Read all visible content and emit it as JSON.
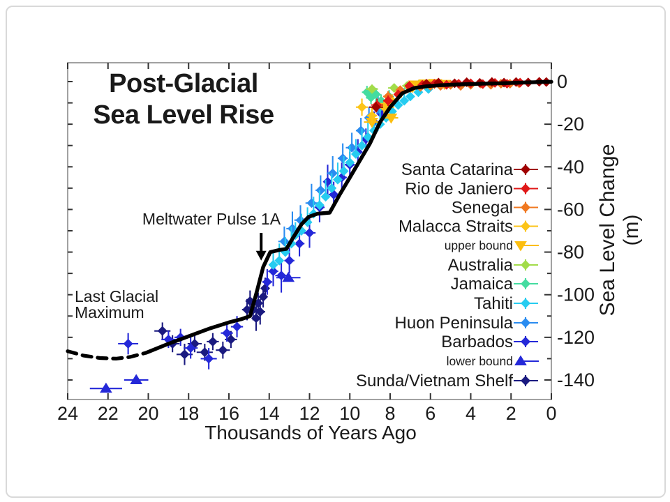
{
  "chart_data": {
    "type": "scatter",
    "title": "Post-Glacial Sea Level Rise",
    "title_line1": "Post-Glacial",
    "title_line2": "Sea Level Rise",
    "xlabel": "Thousands of Years Ago",
    "ylabel": "Sea Level Change (m)",
    "axes": {
      "xlim": [
        24,
        0
      ],
      "x_ticks": [
        24,
        22,
        20,
        18,
        16,
        14,
        12,
        10,
        8,
        6,
        4,
        2,
        0
      ],
      "ylim": [
        -150,
        9
      ],
      "y_ticks_labeled": [
        0,
        -20,
        -40,
        -60,
        -80,
        -100,
        -120,
        -140
      ],
      "y_minor_step": 10,
      "grid": false,
      "tick_label_color": "#1a1a1a"
    },
    "annotations": {
      "meltwater": {
        "text": "Meltwater Pulse 1A",
        "arrow_x_kyr": 14.4,
        "arrow_tail_m": -71,
        "arrow_tip_m": -84
      },
      "lgm": {
        "line1": "Last Glacial",
        "line2": "Maximum"
      }
    },
    "curve": {
      "color": "#000000",
      "dashed_points": [
        [
          24,
          -126.5
        ],
        [
          23.2,
          -128.6
        ],
        [
          22.4,
          -129.7
        ],
        [
          21.6,
          -130
        ],
        [
          20.9,
          -129.2
        ],
        [
          20.1,
          -127.2
        ]
      ],
      "solid_points": [
        [
          20.1,
          -127.2
        ],
        [
          19,
          -123
        ],
        [
          18,
          -119.5
        ],
        [
          17,
          -116
        ],
        [
          16,
          -113
        ],
        [
          15.4,
          -111.5
        ],
        [
          14.95,
          -110
        ],
        [
          14.6,
          -98
        ],
        [
          14.3,
          -87
        ],
        [
          13.95,
          -80
        ],
        [
          13.5,
          -79
        ],
        [
          13.15,
          -78.5
        ],
        [
          12.8,
          -73
        ],
        [
          12.4,
          -67
        ],
        [
          12.05,
          -63.5
        ],
        [
          11.6,
          -62
        ],
        [
          11,
          -61.5
        ],
        [
          10.5,
          -53
        ],
        [
          10,
          -45
        ],
        [
          9.5,
          -37
        ],
        [
          9,
          -29
        ],
        [
          8.5,
          -19
        ],
        [
          8,
          -12
        ],
        [
          7.4,
          -5.5
        ],
        [
          6.8,
          -3
        ],
        [
          6.2,
          -2.2
        ],
        [
          5.5,
          -1.7
        ],
        [
          4.5,
          -1.3
        ],
        [
          3.5,
          -1
        ],
        [
          2.5,
          -0.8
        ],
        [
          1.5,
          -0.5
        ],
        [
          0.5,
          -0.2
        ],
        [
          0,
          -0.1
        ]
      ]
    },
    "series": [
      {
        "name": "Santa Catarina",
        "color": "#a00000",
        "marker": "diamond",
        "error_style": "symmetric",
        "small_label": false,
        "points": [
          [
            8.7,
            -12,
            0.35,
            2.5
          ],
          [
            6.2,
            -1,
            0.2,
            1
          ],
          [
            5.6,
            -0.5,
            0.2,
            1
          ],
          [
            4.8,
            -0.8,
            0.2,
            1
          ],
          [
            4.2,
            -0.3,
            0.2,
            1
          ],
          [
            3.55,
            -0.6,
            0.2,
            1
          ],
          [
            2.95,
            -0.2,
            0.2,
            0.8
          ],
          [
            2.35,
            -0.5,
            0.2,
            0.8
          ],
          [
            1.75,
            -0.2,
            0.2,
            0.8
          ],
          [
            1.15,
            -0.4,
            0.2,
            0.8
          ],
          [
            0.6,
            -0.1,
            0.2,
            0.8
          ],
          [
            0.25,
            -0.2,
            0.2,
            0.8
          ]
        ]
      },
      {
        "name": "Rio de Janiero",
        "color": "#e01818",
        "marker": "diamond",
        "error_style": "symmetric",
        "small_label": false,
        "points": [
          [
            8.65,
            -11,
            0.3,
            3
          ],
          [
            8.1,
            -9,
            0.25,
            2.5
          ],
          [
            7.6,
            -6,
            0.2,
            2
          ],
          [
            7.05,
            -2,
            0.2,
            1.5
          ],
          [
            6.4,
            -1.5,
            0.2,
            1.5
          ],
          [
            5.8,
            -1,
            0.2,
            1.2
          ],
          [
            5.2,
            -1.5,
            0.2,
            1.2
          ],
          [
            4.6,
            -1,
            0.2,
            1
          ],
          [
            4,
            -0.8,
            0.2,
            1
          ],
          [
            3.4,
            -1.2,
            0.2,
            1
          ],
          [
            2.8,
            -0.6,
            0.2,
            1
          ],
          [
            2.2,
            -1,
            0.2,
            1
          ],
          [
            1.55,
            -0.5,
            0.2,
            1
          ]
        ]
      },
      {
        "name": "Senegal",
        "color": "#f07820",
        "marker": "diamond",
        "error_style": "symmetric",
        "small_label": false,
        "points": [
          [
            8.1,
            -7,
            0.25,
            2.5
          ],
          [
            7.5,
            -4,
            0.2,
            2
          ],
          [
            7,
            -3,
            0.2,
            2
          ],
          [
            6.5,
            -2.5,
            0.2,
            1.5
          ],
          [
            6,
            -2,
            0.2,
            1.5
          ],
          [
            5.5,
            -2,
            0.2,
            1.5
          ],
          [
            5,
            -1.5,
            0.2,
            1.5
          ],
          [
            4.5,
            -2,
            0.2,
            1.5
          ],
          [
            4,
            -1.5,
            0.2,
            1.2
          ],
          [
            3.5,
            -1,
            0.2,
            1.2
          ],
          [
            3,
            -1.5,
            0.2,
            1.2
          ],
          [
            2.5,
            -1,
            0.2,
            1
          ],
          [
            2.05,
            -1,
            0.2,
            1
          ],
          [
            1.6,
            -0.8,
            0.2,
            1
          ]
        ]
      },
      {
        "name": "Malacca Straits",
        "color": "#fcc418",
        "marker": "diamond",
        "error_style": "symmetric",
        "small_label": false,
        "points": [
          [
            9.4,
            -12,
            0.3,
            4
          ],
          [
            8.9,
            -16,
            0.25,
            4
          ],
          [
            8.3,
            -12,
            0.3,
            3
          ],
          [
            7.9,
            -9,
            0.25,
            3
          ],
          [
            7.45,
            -5,
            0.3,
            2.5
          ],
          [
            6.9,
            -3,
            0.25,
            2
          ],
          [
            6.45,
            -2,
            0.3,
            2
          ],
          [
            5.95,
            -1.5,
            0.3,
            1.5
          ],
          [
            5.45,
            -1,
            0.3,
            1.5
          ],
          [
            5,
            -1.5,
            0.3,
            1.5
          ]
        ]
      },
      {
        "name": "upper bound",
        "color": "#fcbe10",
        "marker": "triangle-down",
        "error_style": "symmetric",
        "small_label": true,
        "points": [
          [
            8.9,
            -19,
            0.4,
            0
          ],
          [
            8.2,
            -12,
            0.4,
            0
          ],
          [
            7.95,
            -17,
            0.35,
            0
          ],
          [
            6.8,
            -1.5,
            0.4,
            0
          ],
          [
            6.3,
            -1,
            0.4,
            0
          ],
          [
            5.8,
            -0.8,
            0.4,
            0
          ],
          [
            5.3,
            -1.2,
            0.4,
            0
          ]
        ]
      },
      {
        "name": "Australia",
        "color": "#a2dc4a",
        "marker": "diamond",
        "error_style": "symmetric",
        "small_label": false,
        "points": [
          [
            8.9,
            -3.5,
            0.3,
            2
          ],
          [
            7.8,
            -3,
            0.3,
            2
          ],
          [
            7.15,
            -2,
            0.25,
            2
          ],
          [
            6.6,
            -1.5,
            0.25,
            1.5
          ],
          [
            6.05,
            -1,
            0.25,
            1.5
          ]
        ]
      },
      {
        "name": "Jamaica",
        "color": "#44dca0",
        "marker": "diamond",
        "error_style": "symmetric",
        "small_label": false,
        "points": [
          [
            9.15,
            -5,
            0.25,
            3
          ],
          [
            8.95,
            -7.5,
            0.25,
            3
          ],
          [
            8.7,
            -6,
            0.2,
            3
          ],
          [
            8.45,
            -9,
            0.3,
            3
          ],
          [
            8.05,
            -7,
            0.25,
            3
          ]
        ]
      },
      {
        "name": "Tahiti",
        "color": "#26ccf0",
        "marker": "diamond",
        "error_style": "up",
        "small_label": false,
        "points": [
          [
            13.8,
            -86,
            0.2,
            6
          ],
          [
            13.5,
            -84,
            0.2,
            8
          ],
          [
            13.2,
            -80,
            0.2,
            7
          ],
          [
            12.9,
            -76,
            0.2,
            8
          ],
          [
            12.7,
            -72,
            0.2,
            6
          ],
          [
            12.4,
            -70,
            0.2,
            8
          ],
          [
            12.1,
            -66,
            0.2,
            7
          ],
          [
            11.8,
            -62,
            0.2,
            8
          ],
          [
            11.5,
            -58,
            0.2,
            7
          ],
          [
            11.2,
            -54,
            0.2,
            8
          ],
          [
            10.9,
            -50,
            0.2,
            7
          ],
          [
            10.6,
            -46,
            0.2,
            8
          ],
          [
            10.3,
            -42,
            0.2,
            7
          ],
          [
            10,
            -38,
            0.2,
            8
          ],
          [
            9.7,
            -34,
            0.2,
            7
          ],
          [
            9.4,
            -30,
            0.2,
            8
          ],
          [
            9.1,
            -26,
            0.2,
            7
          ],
          [
            8.8,
            -23,
            0.2,
            8
          ],
          [
            8.5,
            -20,
            0.2,
            8
          ],
          [
            8.2,
            -17,
            0.2,
            7
          ],
          [
            7.9,
            -14,
            0.2,
            8
          ],
          [
            7.6,
            -11,
            0.2,
            7
          ],
          [
            7.3,
            -9,
            0.2,
            6
          ],
          [
            7,
            -7,
            0.2,
            6
          ],
          [
            6.6,
            -5,
            0.2,
            5
          ],
          [
            6.1,
            -3.5,
            0.2,
            4
          ]
        ]
      },
      {
        "name": "Huon Peninsula",
        "color": "#2a8cf0",
        "marker": "diamond",
        "error_style": "up",
        "small_label": false,
        "points": [
          [
            13.25,
            -75,
            0.3,
            7
          ],
          [
            12.85,
            -69,
            0.3,
            8
          ],
          [
            12.45,
            -65,
            0.3,
            7
          ],
          [
            11.9,
            -57,
            0.3,
            9
          ],
          [
            11.45,
            -51,
            0.25,
            7
          ],
          [
            10.85,
            -43,
            0.3,
            8
          ],
          [
            10.35,
            -36,
            0.25,
            7
          ],
          [
            9.9,
            -31,
            0.3,
            7
          ],
          [
            9.45,
            -23,
            0.25,
            6
          ],
          [
            9.05,
            -17,
            0.2,
            5
          ],
          [
            8.6,
            -13,
            0.2,
            6
          ]
        ]
      },
      {
        "name": "Barbados",
        "color": "#2428d8",
        "marker": "diamond",
        "error_style": "symmetric",
        "small_label": false,
        "points": [
          [
            21,
            -123,
            0.5,
            5
          ],
          [
            19,
            -121,
            0.35,
            4
          ],
          [
            18.4,
            -120,
            0.3,
            4
          ],
          [
            17.9,
            -125,
            0.35,
            5
          ],
          [
            17,
            -130,
            0.4,
            5
          ],
          [
            16.1,
            -118,
            0.3,
            4
          ],
          [
            15.6,
            -115,
            0.3,
            5
          ],
          [
            14.1,
            -94,
            0.25,
            6
          ],
          [
            13.8,
            -89,
            0.25,
            7
          ],
          [
            13.4,
            -91,
            0.3,
            8
          ],
          [
            13,
            -84,
            0.25,
            6
          ],
          [
            12.5,
            -76,
            0.25,
            6
          ],
          [
            12,
            -71,
            0.3,
            7
          ],
          [
            11.5,
            -59,
            0.25,
            7
          ],
          [
            11.1,
            -47,
            0.2,
            8
          ],
          [
            10.8,
            -53,
            0.25,
            6
          ],
          [
            10.4,
            -45,
            0.25,
            7
          ],
          [
            10,
            -39,
            0.25,
            6
          ],
          [
            9.6,
            -33,
            0.2,
            6
          ],
          [
            9.2,
            -27,
            0.2,
            5
          ],
          [
            8.8,
            -19,
            0.2,
            5
          ],
          [
            8.45,
            -15,
            0.2,
            4
          ]
        ]
      },
      {
        "name": "lower bound",
        "color": "#2428d8",
        "marker": "triangle-up",
        "error_style": "symmetric",
        "small_label": true,
        "points": [
          [
            22.1,
            -144,
            0.8,
            0
          ],
          [
            20.6,
            -140,
            0.6,
            0
          ],
          [
            13.05,
            -92,
            0.6,
            0
          ]
        ]
      },
      {
        "name": "Sunda/Vietnam Shelf",
        "color": "#1a1a80",
        "marker": "diamond",
        "error_style": "symmetric",
        "small_label": false,
        "points": [
          [
            19.3,
            -117,
            0.4,
            4
          ],
          [
            18.8,
            -123,
            0.35,
            4
          ],
          [
            18.2,
            -128,
            0.4,
            5
          ],
          [
            17.7,
            -123,
            0.35,
            4
          ],
          [
            17.2,
            -127,
            0.4,
            4
          ],
          [
            16.8,
            -122,
            0.3,
            4
          ],
          [
            16.3,
            -126,
            0.35,
            4
          ],
          [
            15.9,
            -121,
            0.3,
            4
          ],
          [
            15.1,
            -107,
            0.25,
            5
          ],
          [
            14.95,
            -103,
            0.2,
            5
          ],
          [
            14.8,
            -107,
            0.25,
            5
          ],
          [
            14.65,
            -111,
            0.2,
            6
          ],
          [
            14.55,
            -104,
            0.2,
            5
          ],
          [
            14.45,
            -108,
            0.25,
            6
          ],
          [
            14.3,
            -101,
            0.2,
            5
          ],
          [
            14.2,
            -97,
            0.2,
            5
          ]
        ]
      }
    ],
    "legend": {
      "position": "right-inside"
    }
  }
}
